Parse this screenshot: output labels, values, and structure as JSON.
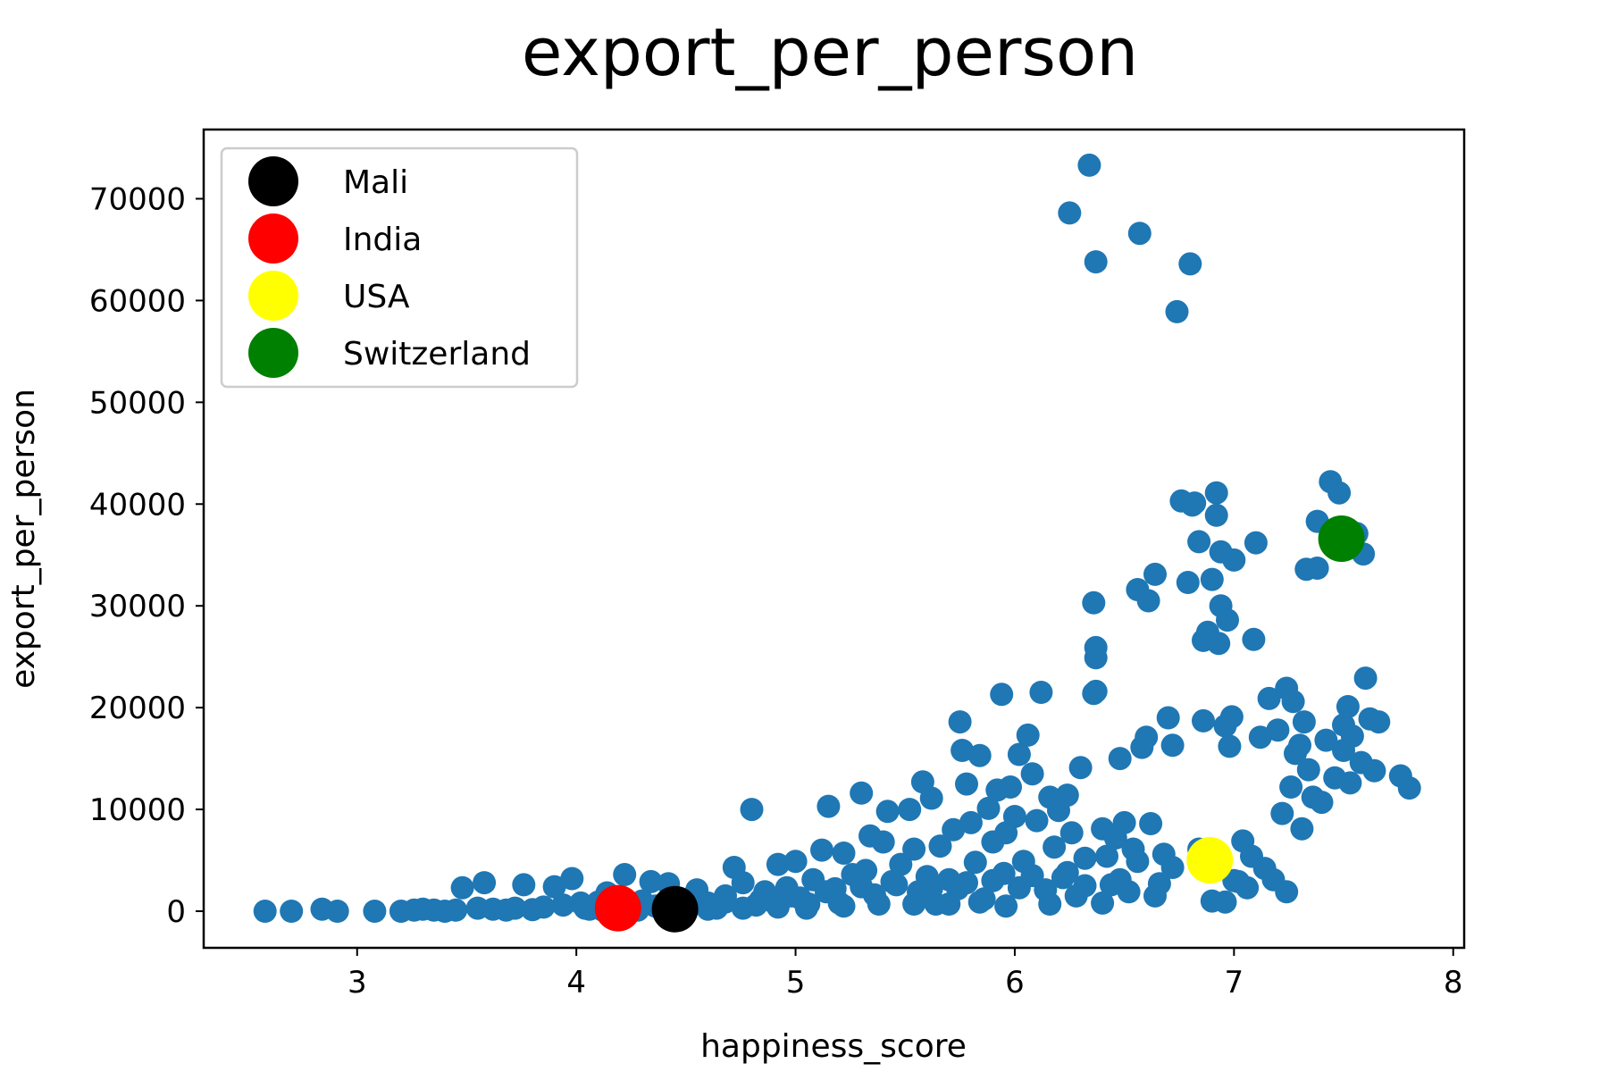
{
  "chart_data": {
    "type": "scatter",
    "title": "export_per_person",
    "xlabel": "happiness_score",
    "ylabel": "export_per_person",
    "xlim": [
      2.3,
      8.05
    ],
    "ylim": [
      -3600,
      76800
    ],
    "xticks": [
      3,
      4,
      5,
      6,
      7,
      8
    ],
    "yticks": [
      0,
      10000,
      20000,
      30000,
      40000,
      50000,
      60000,
      70000
    ],
    "xtick_labels": [
      "3",
      "4",
      "5",
      "6",
      "7",
      "8"
    ],
    "ytick_labels": [
      "0",
      "10000",
      "20000",
      "30000",
      "40000",
      "50000",
      "60000",
      "70000"
    ],
    "grid": false,
    "legend_position": "top-left",
    "base_color": "#1f77b4",
    "background_points": [
      [
        2.58,
        0
      ],
      [
        2.7,
        0
      ],
      [
        2.84,
        200
      ],
      [
        2.91,
        0
      ],
      [
        3.08,
        0
      ],
      [
        3.2,
        0
      ],
      [
        3.26,
        100
      ],
      [
        3.3,
        200
      ],
      [
        3.35,
        100
      ],
      [
        3.4,
        0
      ],
      [
        3.45,
        100
      ],
      [
        3.48,
        2300
      ],
      [
        3.55,
        300
      ],
      [
        3.58,
        2800
      ],
      [
        3.62,
        200
      ],
      [
        3.68,
        100
      ],
      [
        3.72,
        300
      ],
      [
        3.76,
        2600
      ],
      [
        3.8,
        150
      ],
      [
        3.85,
        400
      ],
      [
        3.9,
        2400
      ],
      [
        3.94,
        600
      ],
      [
        3.98,
        3200
      ],
      [
        4.02,
        800
      ],
      [
        4.06,
        200
      ],
      [
        4.1,
        900
      ],
      [
        4.14,
        1800
      ],
      [
        4.18,
        300
      ],
      [
        4.22,
        3600
      ],
      [
        4.26,
        700
      ],
      [
        4.3,
        1000
      ],
      [
        4.34,
        2900
      ],
      [
        4.38,
        400
      ],
      [
        4.42,
        2700
      ],
      [
        4.46,
        1200
      ],
      [
        4.5,
        500
      ],
      [
        4.55,
        2100
      ],
      [
        4.6,
        800
      ],
      [
        4.64,
        300
      ],
      [
        4.68,
        1500
      ],
      [
        4.72,
        4300
      ],
      [
        4.76,
        2800
      ],
      [
        4.8,
        10000
      ],
      [
        4.82,
        600
      ],
      [
        4.86,
        1900
      ],
      [
        4.9,
        900
      ],
      [
        4.92,
        4600
      ],
      [
        4.96,
        2300
      ],
      [
        5.0,
        4900
      ],
      [
        5.02,
        1300
      ],
      [
        5.05,
        300
      ],
      [
        5.08,
        3100
      ],
      [
        5.12,
        6000
      ],
      [
        5.15,
        10300
      ],
      [
        5.18,
        2200
      ],
      [
        5.2,
        800
      ],
      [
        5.22,
        5700
      ],
      [
        5.26,
        3600
      ],
      [
        5.3,
        11600
      ],
      [
        5.32,
        4000
      ],
      [
        5.34,
        7400
      ],
      [
        5.36,
        1600
      ],
      [
        5.4,
        6800
      ],
      [
        5.42,
        9800
      ],
      [
        5.44,
        2900
      ],
      [
        5.48,
        4600
      ],
      [
        5.52,
        10000
      ],
      [
        5.54,
        6100
      ],
      [
        5.56,
        1900
      ],
      [
        5.58,
        12700
      ],
      [
        5.6,
        3400
      ],
      [
        5.62,
        11100
      ],
      [
        5.64,
        700
      ],
      [
        5.66,
        6400
      ],
      [
        5.7,
        3100
      ],
      [
        5.72,
        8000
      ],
      [
        5.74,
        2200
      ],
      [
        5.75,
        18600
      ],
      [
        5.76,
        15800
      ],
      [
        5.78,
        12500
      ],
      [
        5.8,
        8700
      ],
      [
        5.82,
        4800
      ],
      [
        5.84,
        15300
      ],
      [
        5.86,
        1200
      ],
      [
        5.88,
        10100
      ],
      [
        5.9,
        6800
      ],
      [
        5.92,
        11900
      ],
      [
        5.94,
        21300
      ],
      [
        5.95,
        3700
      ],
      [
        5.96,
        7700
      ],
      [
        5.98,
        12200
      ],
      [
        6.0,
        9300
      ],
      [
        6.02,
        15400
      ],
      [
        6.04,
        4900
      ],
      [
        6.06,
        17300
      ],
      [
        6.08,
        13500
      ],
      [
        6.1,
        8900
      ],
      [
        6.12,
        21500
      ],
      [
        6.14,
        2100
      ],
      [
        6.16,
        11200
      ],
      [
        6.18,
        6300
      ],
      [
        6.2,
        9900
      ],
      [
        6.22,
        3300
      ],
      [
        6.24,
        11400
      ],
      [
        6.26,
        7700
      ],
      [
        6.28,
        1500
      ],
      [
        6.3,
        14100
      ],
      [
        6.32,
        5200
      ],
      [
        6.34,
        73300
      ],
      [
        6.25,
        68600
      ],
      [
        6.37,
        63800
      ],
      [
        6.36,
        30300
      ],
      [
        6.37,
        25900
      ],
      [
        6.37,
        24900
      ],
      [
        6.36,
        21400
      ],
      [
        6.37,
        21600
      ],
      [
        6.4,
        8100
      ],
      [
        6.42,
        5400
      ],
      [
        6.44,
        2600
      ],
      [
        6.46,
        7200
      ],
      [
        6.48,
        15000
      ],
      [
        6.5,
        8700
      ],
      [
        6.52,
        1900
      ],
      [
        6.54,
        6100
      ],
      [
        6.56,
        31600
      ],
      [
        6.57,
        66600
      ],
      [
        6.58,
        16100
      ],
      [
        6.6,
        17100
      ],
      [
        6.61,
        30500
      ],
      [
        6.62,
        8600
      ],
      [
        6.64,
        33100
      ],
      [
        6.66,
        2700
      ],
      [
        6.68,
        5600
      ],
      [
        6.7,
        19000
      ],
      [
        6.72,
        16300
      ],
      [
        6.74,
        58900
      ],
      [
        6.76,
        40300
      ],
      [
        6.79,
        32300
      ],
      [
        6.8,
        63600
      ],
      [
        6.81,
        39900
      ],
      [
        6.82,
        40100
      ],
      [
        6.84,
        36300
      ],
      [
        6.86,
        26600
      ],
      [
        6.86,
        18700
      ],
      [
        6.88,
        27400
      ],
      [
        6.9,
        32600
      ],
      [
        6.92,
        41100
      ],
      [
        6.92,
        38900
      ],
      [
        6.93,
        26300
      ],
      [
        6.94,
        30000
      ],
      [
        6.94,
        35300
      ],
      [
        6.96,
        18200
      ],
      [
        6.97,
        28600
      ],
      [
        6.98,
        16200
      ],
      [
        6.99,
        19100
      ],
      [
        7.0,
        34500
      ],
      [
        7.02,
        2900
      ],
      [
        7.04,
        6900
      ],
      [
        7.06,
        2300
      ],
      [
        7.08,
        5400
      ],
      [
        7.09,
        26700
      ],
      [
        7.1,
        36200
      ],
      [
        7.12,
        17100
      ],
      [
        7.14,
        4200
      ],
      [
        7.16,
        20900
      ],
      [
        7.18,
        3100
      ],
      [
        7.2,
        17800
      ],
      [
        7.22,
        9600
      ],
      [
        7.24,
        21900
      ],
      [
        7.24,
        1900
      ],
      [
        7.26,
        12200
      ],
      [
        7.27,
        20600
      ],
      [
        7.28,
        15500
      ],
      [
        7.3,
        16300
      ],
      [
        7.31,
        8100
      ],
      [
        7.32,
        18600
      ],
      [
        7.33,
        33600
      ],
      [
        7.34,
        13900
      ],
      [
        7.36,
        11200
      ],
      [
        7.38,
        33700
      ],
      [
        7.38,
        38300
      ],
      [
        7.4,
        10700
      ],
      [
        7.42,
        16800
      ],
      [
        7.44,
        42200
      ],
      [
        7.46,
        13100
      ],
      [
        7.48,
        41100
      ],
      [
        7.5,
        15800
      ],
      [
        7.5,
        18300
      ],
      [
        7.52,
        20100
      ],
      [
        7.53,
        12600
      ],
      [
        7.54,
        17200
      ],
      [
        7.56,
        37100
      ],
      [
        7.58,
        14600
      ],
      [
        7.59,
        35100
      ],
      [
        7.6,
        22900
      ],
      [
        7.62,
        18900
      ],
      [
        7.64,
        13800
      ],
      [
        7.66,
        18600
      ],
      [
        7.76,
        13300
      ],
      [
        7.8,
        12100
      ],
      [
        6.9,
        1000
      ],
      [
        6.96,
        900
      ],
      [
        7.0,
        3000
      ],
      [
        6.84,
        6100
      ],
      [
        6.72,
        4300
      ],
      [
        6.64,
        1500
      ],
      [
        6.56,
        4900
      ],
      [
        6.48,
        3100
      ],
      [
        6.4,
        800
      ],
      [
        6.32,
        2500
      ],
      [
        6.24,
        3800
      ],
      [
        6.16,
        700
      ],
      [
        6.08,
        3500
      ],
      [
        6.02,
        2300
      ],
      [
        5.96,
        500
      ],
      [
        5.9,
        3000
      ],
      [
        5.84,
        900
      ],
      [
        5.78,
        2800
      ],
      [
        5.7,
        700
      ],
      [
        5.62,
        2200
      ],
      [
        5.54,
        700
      ],
      [
        5.46,
        2600
      ],
      [
        5.38,
        700
      ],
      [
        5.3,
        2400
      ],
      [
        5.22,
        500
      ],
      [
        5.14,
        1900
      ],
      [
        5.06,
        700
      ],
      [
        4.98,
        1500
      ],
      [
        4.92,
        400
      ],
      [
        4.84,
        1100
      ],
      [
        4.76,
        300
      ],
      [
        4.68,
        900
      ],
      [
        4.6,
        200
      ],
      [
        4.52,
        700
      ],
      [
        4.44,
        150
      ],
      [
        4.36,
        500
      ],
      [
        4.28,
        100
      ],
      [
        4.2,
        400
      ],
      [
        4.12,
        100
      ],
      [
        4.04,
        300
      ]
    ],
    "series": [
      {
        "name": "Mali",
        "x": 4.45,
        "y": 200,
        "color": "#000000"
      },
      {
        "name": "India",
        "x": 4.19,
        "y": 300,
        "color": "#ff0000"
      },
      {
        "name": "USA",
        "x": 6.89,
        "y": 5000,
        "color": "#ffff00"
      },
      {
        "name": "Switzerland",
        "x": 7.49,
        "y": 36600,
        "color": "#008000"
      }
    ]
  }
}
